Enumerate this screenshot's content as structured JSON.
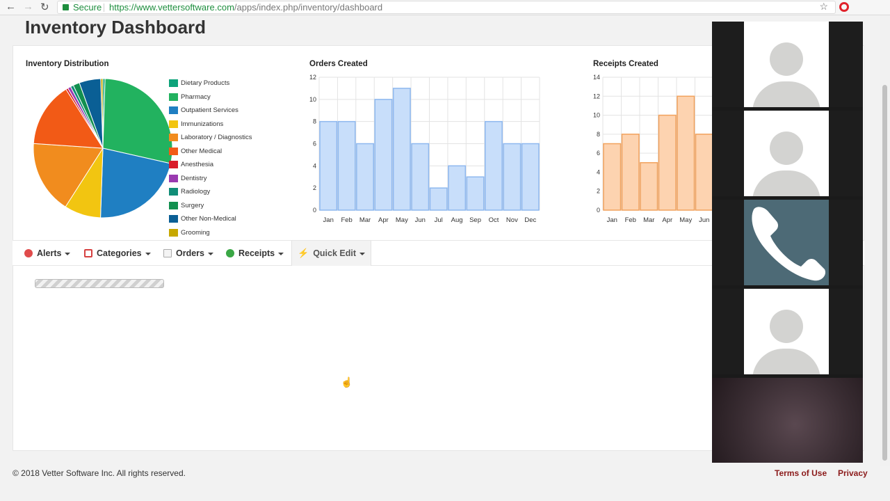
{
  "browser": {
    "secure_label": "Secure",
    "url_host": "https://www.vettersoftware.com",
    "url_path": "/apps/index.php/inventory/dashboard",
    "back_icon": "arrow-left-icon",
    "forward_icon": "arrow-right-icon",
    "reload_icon": "reload-icon",
    "bookmark_icon": "star-icon"
  },
  "page": {
    "title": "Inventory Dashboard"
  },
  "chart_data": [
    {
      "type": "pie",
      "title": "Inventory Distribution",
      "legend_position": "right",
      "categories": [
        "Dietary Products",
        "Pharmacy",
        "Outpatient Services",
        "Immunizations",
        "Laboratory / Diagnostics",
        "Other Medical",
        "Anesthesia",
        "Dentistry",
        "Radiology",
        "Surgery",
        "Other Non-Medical",
        "Grooming"
      ],
      "values": [
        0.5,
        28,
        22,
        8.5,
        17,
        15,
        0.5,
        0.7,
        0.7,
        1.5,
        5,
        0.5
      ],
      "colors": [
        "#0ea37a",
        "#22b25f",
        "#1f7fc2",
        "#f2c511",
        "#f18c1e",
        "#f25a16",
        "#d91c2a",
        "#9a3ab0",
        "#118d77",
        "#12904f",
        "#0a5f95",
        "#c7a800"
      ]
    },
    {
      "type": "bar",
      "title": "Orders Created",
      "categories": [
        "Jan",
        "Feb",
        "Mar",
        "Apr",
        "May",
        "Jun",
        "Jul",
        "Aug",
        "Sep",
        "Oct",
        "Nov",
        "Dec"
      ],
      "values": [
        8,
        8,
        6,
        10,
        11,
        6,
        2,
        4,
        3,
        8,
        6,
        6
      ],
      "ylim": [
        0,
        12
      ],
      "yticks": [
        0,
        2,
        4,
        6,
        8,
        10,
        12
      ],
      "grid": true,
      "fill": "#c8defa",
      "stroke": "#8eb8ef"
    },
    {
      "type": "bar",
      "title": "Receipts Created",
      "categories": [
        "Jan",
        "Feb",
        "Mar",
        "Apr",
        "May",
        "Jun"
      ],
      "values": [
        7,
        8,
        5,
        10,
        12,
        8
      ],
      "ylim": [
        0,
        14
      ],
      "yticks": [
        0,
        2,
        4,
        6,
        8,
        10,
        12,
        14
      ],
      "grid": true,
      "fill": "#fdd3b0",
      "stroke": "#f2a25d"
    }
  ],
  "toolbar": {
    "items": [
      {
        "label": "Alerts",
        "icon": "alert-icon",
        "color": "#e04b4b"
      },
      {
        "label": "Categories",
        "icon": "clipboard-icon",
        "color": "#d64040"
      },
      {
        "label": "Orders",
        "icon": "document-icon",
        "color": "#999999"
      },
      {
        "label": "Receipts",
        "icon": "check-circle-icon",
        "color": "#3aa745"
      },
      {
        "label": "Quick Edit",
        "icon": "lightning-icon",
        "color": "#e8b400"
      }
    ]
  },
  "footer": {
    "copyright": "© 2018 Vetter Software Inc. All rights reserved.",
    "terms": "Terms of Use",
    "privacy": "Privacy"
  },
  "video_call": {
    "tiles": [
      "avatar-placeholder",
      "avatar-placeholder",
      "phone-icon",
      "avatar-placeholder",
      "blurred-video"
    ]
  }
}
